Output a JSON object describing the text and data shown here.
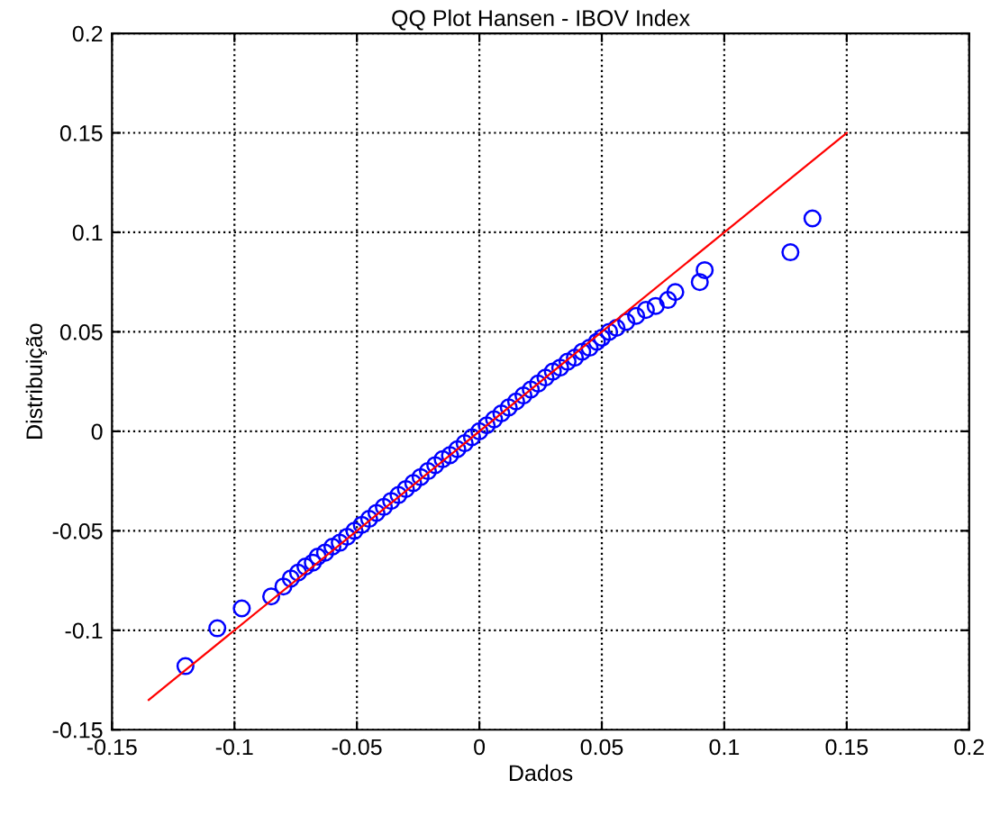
{
  "chart_data": {
    "type": "scatter",
    "title": "QQ Plot Hansen - IBOV Index",
    "xlabel": "Dados",
    "ylabel": "Distribuição",
    "xlim": [
      -0.15,
      0.2
    ],
    "ylim": [
      -0.15,
      0.2
    ],
    "xticks": [
      -0.15,
      -0.1,
      -0.05,
      0,
      0.05,
      0.1,
      0.15,
      0.2
    ],
    "yticks": [
      -0.15,
      -0.1,
      -0.05,
      0,
      0.05,
      0.1,
      0.15,
      0.2
    ],
    "grid": true,
    "marker": "circle",
    "series": [
      {
        "color": "#0000ff",
        "x": [
          -0.12,
          -0.107,
          -0.097,
          -0.085,
          -0.08,
          -0.077,
          -0.074,
          -0.071,
          -0.068,
          -0.066,
          -0.063,
          -0.06,
          -0.057,
          -0.054,
          -0.051,
          -0.048,
          -0.045,
          -0.042,
          -0.039,
          -0.036,
          -0.033,
          -0.03,
          -0.027,
          -0.024,
          -0.021,
          -0.018,
          -0.015,
          -0.012,
          -0.009,
          -0.006,
          -0.003,
          0,
          0.003,
          0.006,
          0.009,
          0.012,
          0.015,
          0.018,
          0.021,
          0.024,
          0.027,
          0.03,
          0.033,
          0.036,
          0.039,
          0.042,
          0.045,
          0.048,
          0.05,
          0.053,
          0.056,
          0.06,
          0.064,
          0.068,
          0.072,
          0.077,
          0.08,
          0.09,
          0.092,
          0.127,
          0.136
        ],
        "values": [
          -0.118,
          -0.099,
          -0.089,
          -0.083,
          -0.078,
          -0.074,
          -0.071,
          -0.068,
          -0.066,
          -0.063,
          -0.061,
          -0.058,
          -0.056,
          -0.053,
          -0.05,
          -0.047,
          -0.044,
          -0.041,
          -0.038,
          -0.035,
          -0.032,
          -0.029,
          -0.026,
          -0.023,
          -0.02,
          -0.017,
          -0.014,
          -0.012,
          -0.009,
          -0.006,
          -0.003,
          0,
          0.003,
          0.006,
          0.009,
          0.012,
          0.015,
          0.018,
          0.021,
          0.024,
          0.027,
          0.03,
          0.032,
          0.035,
          0.037,
          0.04,
          0.042,
          0.045,
          0.047,
          0.05,
          0.052,
          0.055,
          0.058,
          0.061,
          0.063,
          0.066,
          0.07,
          0.075,
          0.081,
          0.09,
          0.107
        ]
      },
      {
        "type": "line",
        "color": "#ff0000",
        "line_style": "solid",
        "marker": "none",
        "x": [
          -0.135,
          0.15
        ],
        "values": [
          -0.135,
          0.15
        ]
      }
    ]
  }
}
